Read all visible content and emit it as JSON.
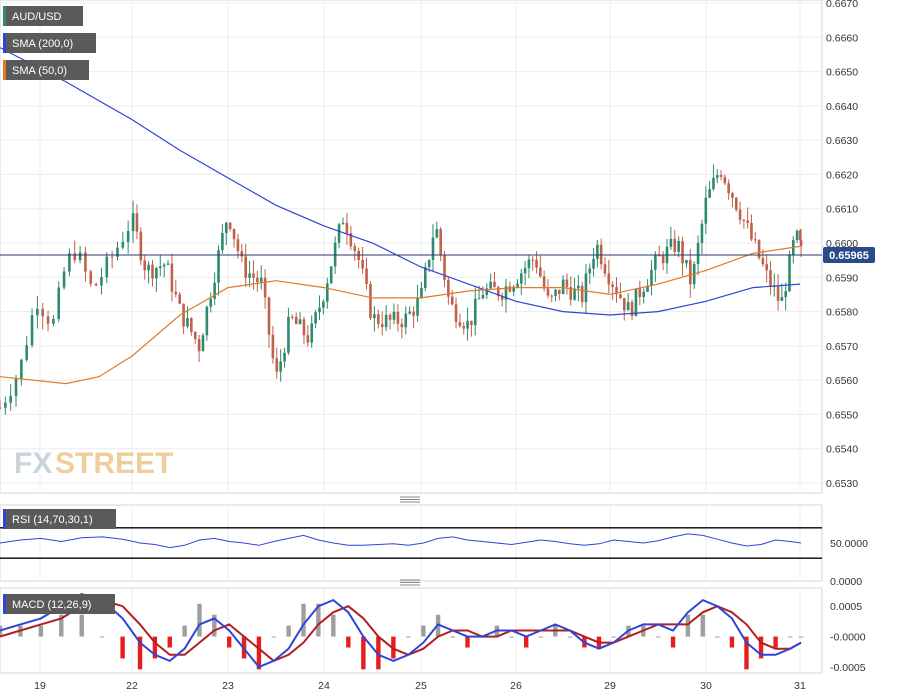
{
  "chart_data": [
    {
      "type": "candlestick",
      "title": "AUD/USD",
      "indicators": [
        "SMA (200,0)",
        "SMA (50,0)"
      ],
      "colors": {
        "up": "#2e8a6e",
        "down": "#c0614a",
        "sma200": "#2f45d6",
        "sma50": "#e07a28",
        "last_line": "#2a3a6a",
        "price_tag": "#2a4a8a"
      },
      "ylim": [
        0.653,
        0.667
      ],
      "y_ticks": [
        "0.6530",
        "0.6540",
        "0.6550",
        "0.6560",
        "0.6570",
        "0.6580",
        "0.6590",
        "0.6600",
        "0.6610",
        "0.6620",
        "0.6630",
        "0.6640",
        "0.6650",
        "0.6660",
        "0.6670"
      ],
      "current_price": "0.65965",
      "x_labels": [
        "19",
        "22",
        "23",
        "24",
        "25",
        "26",
        "29",
        "30",
        "31"
      ],
      "session_points": [
        {
          "t": 0.0,
          "p": 0.6552
        },
        {
          "t": 0.3,
          "p": 0.6563
        },
        {
          "t": 0.55,
          "p": 0.6584
        },
        {
          "t": 0.8,
          "p": 0.6576
        },
        {
          "t": 1.0,
          "p": 0.6594
        },
        {
          "t": 1.15,
          "p": 0.6598
        },
        {
          "t": 1.4,
          "p": 0.6586
        },
        {
          "t": 1.7,
          "p": 0.6596
        },
        {
          "t": 2.0,
          "p": 0.6607
        },
        {
          "t": 2.3,
          "p": 0.6592
        },
        {
          "t": 2.7,
          "p": 0.6594
        },
        {
          "t": 3.0,
          "p": 0.658
        },
        {
          "t": 3.4,
          "p": 0.657
        },
        {
          "t": 3.7,
          "p": 0.659
        },
        {
          "t": 4.0,
          "p": 0.6609
        },
        {
          "t": 4.3,
          "p": 0.6593
        },
        {
          "t": 4.7,
          "p": 0.6588
        },
        {
          "t": 5.0,
          "p": 0.656
        },
        {
          "t": 5.3,
          "p": 0.6578
        },
        {
          "t": 5.7,
          "p": 0.6572
        },
        {
          "t": 6.0,
          "p": 0.6586
        },
        {
          "t": 6.4,
          "p": 0.6608
        },
        {
          "t": 6.7,
          "p": 0.6596
        },
        {
          "t": 7.0,
          "p": 0.6578
        },
        {
          "t": 7.4,
          "p": 0.6577
        },
        {
          "t": 7.7,
          "p": 0.6578
        },
        {
          "t": 8.0,
          "p": 0.6584
        },
        {
          "t": 8.3,
          "p": 0.6606
        },
        {
          "t": 8.6,
          "p": 0.6582
        },
        {
          "t": 9.0,
          "p": 0.6576
        },
        {
          "t": 9.3,
          "p": 0.6586
        },
        {
          "t": 9.7,
          "p": 0.6586
        },
        {
          "t": 10.0,
          "p": 0.659
        },
        {
          "t": 10.4,
          "p": 0.6596
        },
        {
          "t": 10.7,
          "p": 0.6582
        },
        {
          "t": 11.0,
          "p": 0.6588
        },
        {
          "t": 11.4,
          "p": 0.6584
        },
        {
          "t": 11.7,
          "p": 0.66
        },
        {
          "t": 12.0,
          "p": 0.659
        },
        {
          "t": 12.4,
          "p": 0.658
        },
        {
          "t": 12.7,
          "p": 0.6588
        },
        {
          "t": 13.0,
          "p": 0.6595
        },
        {
          "t": 13.4,
          "p": 0.66
        },
        {
          "t": 13.7,
          "p": 0.6588
        },
        {
          "t": 14.0,
          "p": 0.6612
        },
        {
          "t": 14.3,
          "p": 0.6622
        },
        {
          "t": 14.7,
          "p": 0.661
        },
        {
          "t": 15.0,
          "p": 0.66
        },
        {
          "t": 15.3,
          "p": 0.659
        },
        {
          "t": 15.6,
          "p": 0.6582
        },
        {
          "t": 15.9,
          "p": 0.6602
        },
        {
          "t": 16.1,
          "p": 0.6597
        }
      ],
      "sma200_points": [
        {
          "t": 0.0,
          "p": 0.6657
        },
        {
          "t": 1.0,
          "p": 0.6647
        },
        {
          "t": 2.0,
          "p": 0.6636
        },
        {
          "t": 3.0,
          "p": 0.6627
        },
        {
          "t": 4.0,
          "p": 0.6619
        },
        {
          "t": 5.0,
          "p": 0.6611
        },
        {
          "t": 6.0,
          "p": 0.6605
        },
        {
          "t": 7.0,
          "p": 0.66
        },
        {
          "t": 8.0,
          "p": 0.6593
        },
        {
          "t": 9.0,
          "p": 0.6588
        },
        {
          "t": 10.0,
          "p": 0.6583
        },
        {
          "t": 11.0,
          "p": 0.658
        },
        {
          "t": 12.0,
          "p": 0.6579
        },
        {
          "t": 13.0,
          "p": 0.658
        },
        {
          "t": 14.0,
          "p": 0.6583
        },
        {
          "t": 15.0,
          "p": 0.6587
        },
        {
          "t": 16.0,
          "p": 0.6588
        }
      ],
      "sma50_points": [
        {
          "t": 0.0,
          "p": 0.6561
        },
        {
          "t": 1.0,
          "p": 0.6559
        },
        {
          "t": 1.5,
          "p": 0.6561
        },
        {
          "t": 2.0,
          "p": 0.6567
        },
        {
          "t": 3.0,
          "p": 0.6579
        },
        {
          "t": 4.0,
          "p": 0.6587
        },
        {
          "t": 5.0,
          "p": 0.6589
        },
        {
          "t": 6.0,
          "p": 0.6587
        },
        {
          "t": 7.0,
          "p": 0.6584
        },
        {
          "t": 8.0,
          "p": 0.6584
        },
        {
          "t": 9.0,
          "p": 0.6586
        },
        {
          "t": 10.0,
          "p": 0.6587
        },
        {
          "t": 11.0,
          "p": 0.6587
        },
        {
          "t": 12.0,
          "p": 0.6585
        },
        {
          "t": 13.0,
          "p": 0.6588
        },
        {
          "t": 14.0,
          "p": 0.6592
        },
        {
          "t": 15.0,
          "p": 0.6597
        },
        {
          "t": 16.0,
          "p": 0.6599
        }
      ]
    },
    {
      "type": "line",
      "title": "RSI (14,70,30,1)",
      "ylim": [
        0,
        100
      ],
      "levels": [
        70,
        30
      ],
      "y_ticks": [
        "50.0000",
        "0.0000"
      ],
      "color": "#2f45d6",
      "values": [
        50,
        54,
        56,
        52,
        57,
        58,
        55,
        50,
        48,
        44,
        47,
        54,
        56,
        52,
        50,
        47,
        52,
        56,
        60,
        54,
        50,
        47,
        47,
        48,
        49,
        47,
        50,
        56,
        58,
        54,
        52,
        50,
        48,
        51,
        54,
        52,
        49,
        47,
        49,
        54,
        52,
        50,
        53,
        58,
        62,
        60,
        55,
        50,
        46,
        48,
        54,
        52,
        50
      ]
    },
    {
      "type": "macd",
      "title": "MACD (12,26,9)",
      "ylim": [
        -0.0006,
        0.0008
      ],
      "y_ticks": [
        "0.0005",
        "-0.0000",
        "-0.0005"
      ],
      "colors": {
        "macd": "#2f45d6",
        "signal": "#b02020",
        "hist_pos": "#9e9e9e",
        "hist_neg": "#e61e1e"
      },
      "macd": [
        0.0001,
        0.0002,
        0.0003,
        0.0005,
        0.0007,
        0.0006,
        0.0003,
        -0.0001,
        -0.0003,
        -0.0004,
        -0.0002,
        0.0002,
        0.0003,
        0.0001,
        -0.0002,
        -0.0005,
        -0.0004,
        -0.0002,
        0.0002,
        0.0005,
        0.0006,
        0.0004,
        0.0,
        -0.0003,
        -0.0004,
        -0.0003,
        -0.0001,
        0.0002,
        0.0001,
        0.0,
        0.0,
        0.0001,
        0.0001,
        0.0,
        0.0001,
        0.0002,
        0.0001,
        -0.0001,
        -0.0002,
        -0.0001,
        0.0001,
        0.0002,
        0.0002,
        0.0001,
        0.0004,
        0.0006,
        0.0005,
        0.0003,
        -0.0001,
        -0.0003,
        -0.0003,
        -0.0002,
        -0.0001
      ],
      "signal": [
        0.0,
        0.0001,
        0.0002,
        0.0003,
        0.0005,
        0.0006,
        0.0005,
        0.0002,
        -0.0001,
        -0.0003,
        -0.0003,
        -0.0001,
        0.0001,
        0.0002,
        0.0,
        -0.0002,
        -0.0004,
        -0.0003,
        -0.0001,
        0.0002,
        0.0004,
        0.0005,
        0.0003,
        0.0,
        -0.0002,
        -0.0003,
        -0.0002,
        0.0,
        0.0001,
        0.0001,
        0.0,
        0.0,
        0.0001,
        0.0001,
        0.0001,
        0.0001,
        0.0001,
        0.0,
        -0.0001,
        -0.0001,
        0.0,
        0.0001,
        0.0002,
        0.0002,
        0.0002,
        0.0004,
        0.0005,
        0.0004,
        0.0002,
        -0.0001,
        -0.0002,
        -0.0002,
        -0.0001
      ]
    }
  ]
}
